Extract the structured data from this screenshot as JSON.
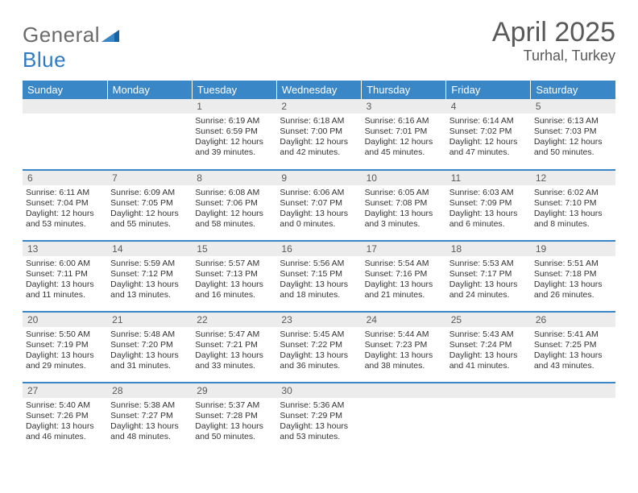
{
  "logo": {
    "word1": "General",
    "word2": "Blue"
  },
  "title": "April 2025",
  "location": "Turhal, Turkey",
  "colors": {
    "header_bg": "#3a87c8",
    "header_text": "#ffffff",
    "daynum_bg": "#ececec",
    "daynum_text": "#5a5a5a",
    "body_text": "#333333",
    "title_text": "#595959",
    "row_divider": "#3a87c8",
    "logo_gray": "#6a6a6a",
    "logo_blue": "#2f7bc3"
  },
  "headers": [
    "Sunday",
    "Monday",
    "Tuesday",
    "Wednesday",
    "Thursday",
    "Friday",
    "Saturday"
  ],
  "weeks": [
    [
      null,
      null,
      {
        "n": "1",
        "sr": "Sunrise: 6:19 AM",
        "ss": "Sunset: 6:59 PM",
        "dl": "Daylight: 12 hours and 39 minutes."
      },
      {
        "n": "2",
        "sr": "Sunrise: 6:18 AM",
        "ss": "Sunset: 7:00 PM",
        "dl": "Daylight: 12 hours and 42 minutes."
      },
      {
        "n": "3",
        "sr": "Sunrise: 6:16 AM",
        "ss": "Sunset: 7:01 PM",
        "dl": "Daylight: 12 hours and 45 minutes."
      },
      {
        "n": "4",
        "sr": "Sunrise: 6:14 AM",
        "ss": "Sunset: 7:02 PM",
        "dl": "Daylight: 12 hours and 47 minutes."
      },
      {
        "n": "5",
        "sr": "Sunrise: 6:13 AM",
        "ss": "Sunset: 7:03 PM",
        "dl": "Daylight: 12 hours and 50 minutes."
      }
    ],
    [
      {
        "n": "6",
        "sr": "Sunrise: 6:11 AM",
        "ss": "Sunset: 7:04 PM",
        "dl": "Daylight: 12 hours and 53 minutes."
      },
      {
        "n": "7",
        "sr": "Sunrise: 6:09 AM",
        "ss": "Sunset: 7:05 PM",
        "dl": "Daylight: 12 hours and 55 minutes."
      },
      {
        "n": "8",
        "sr": "Sunrise: 6:08 AM",
        "ss": "Sunset: 7:06 PM",
        "dl": "Daylight: 12 hours and 58 minutes."
      },
      {
        "n": "9",
        "sr": "Sunrise: 6:06 AM",
        "ss": "Sunset: 7:07 PM",
        "dl": "Daylight: 13 hours and 0 minutes."
      },
      {
        "n": "10",
        "sr": "Sunrise: 6:05 AM",
        "ss": "Sunset: 7:08 PM",
        "dl": "Daylight: 13 hours and 3 minutes."
      },
      {
        "n": "11",
        "sr": "Sunrise: 6:03 AM",
        "ss": "Sunset: 7:09 PM",
        "dl": "Daylight: 13 hours and 6 minutes."
      },
      {
        "n": "12",
        "sr": "Sunrise: 6:02 AM",
        "ss": "Sunset: 7:10 PM",
        "dl": "Daylight: 13 hours and 8 minutes."
      }
    ],
    [
      {
        "n": "13",
        "sr": "Sunrise: 6:00 AM",
        "ss": "Sunset: 7:11 PM",
        "dl": "Daylight: 13 hours and 11 minutes."
      },
      {
        "n": "14",
        "sr": "Sunrise: 5:59 AM",
        "ss": "Sunset: 7:12 PM",
        "dl": "Daylight: 13 hours and 13 minutes."
      },
      {
        "n": "15",
        "sr": "Sunrise: 5:57 AM",
        "ss": "Sunset: 7:13 PM",
        "dl": "Daylight: 13 hours and 16 minutes."
      },
      {
        "n": "16",
        "sr": "Sunrise: 5:56 AM",
        "ss": "Sunset: 7:15 PM",
        "dl": "Daylight: 13 hours and 18 minutes."
      },
      {
        "n": "17",
        "sr": "Sunrise: 5:54 AM",
        "ss": "Sunset: 7:16 PM",
        "dl": "Daylight: 13 hours and 21 minutes."
      },
      {
        "n": "18",
        "sr": "Sunrise: 5:53 AM",
        "ss": "Sunset: 7:17 PM",
        "dl": "Daylight: 13 hours and 24 minutes."
      },
      {
        "n": "19",
        "sr": "Sunrise: 5:51 AM",
        "ss": "Sunset: 7:18 PM",
        "dl": "Daylight: 13 hours and 26 minutes."
      }
    ],
    [
      {
        "n": "20",
        "sr": "Sunrise: 5:50 AM",
        "ss": "Sunset: 7:19 PM",
        "dl": "Daylight: 13 hours and 29 minutes."
      },
      {
        "n": "21",
        "sr": "Sunrise: 5:48 AM",
        "ss": "Sunset: 7:20 PM",
        "dl": "Daylight: 13 hours and 31 minutes."
      },
      {
        "n": "22",
        "sr": "Sunrise: 5:47 AM",
        "ss": "Sunset: 7:21 PM",
        "dl": "Daylight: 13 hours and 33 minutes."
      },
      {
        "n": "23",
        "sr": "Sunrise: 5:45 AM",
        "ss": "Sunset: 7:22 PM",
        "dl": "Daylight: 13 hours and 36 minutes."
      },
      {
        "n": "24",
        "sr": "Sunrise: 5:44 AM",
        "ss": "Sunset: 7:23 PM",
        "dl": "Daylight: 13 hours and 38 minutes."
      },
      {
        "n": "25",
        "sr": "Sunrise: 5:43 AM",
        "ss": "Sunset: 7:24 PM",
        "dl": "Daylight: 13 hours and 41 minutes."
      },
      {
        "n": "26",
        "sr": "Sunrise: 5:41 AM",
        "ss": "Sunset: 7:25 PM",
        "dl": "Daylight: 13 hours and 43 minutes."
      }
    ],
    [
      {
        "n": "27",
        "sr": "Sunrise: 5:40 AM",
        "ss": "Sunset: 7:26 PM",
        "dl": "Daylight: 13 hours and 46 minutes."
      },
      {
        "n": "28",
        "sr": "Sunrise: 5:38 AM",
        "ss": "Sunset: 7:27 PM",
        "dl": "Daylight: 13 hours and 48 minutes."
      },
      {
        "n": "29",
        "sr": "Sunrise: 5:37 AM",
        "ss": "Sunset: 7:28 PM",
        "dl": "Daylight: 13 hours and 50 minutes."
      },
      {
        "n": "30",
        "sr": "Sunrise: 5:36 AM",
        "ss": "Sunset: 7:29 PM",
        "dl": "Daylight: 13 hours and 53 minutes."
      },
      null,
      null,
      null
    ]
  ]
}
